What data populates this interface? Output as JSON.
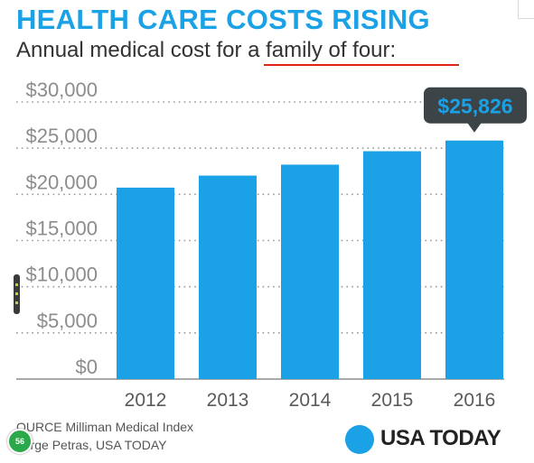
{
  "header": {
    "title": "HEALTH CARE COSTS RISING",
    "subtitle": "Annual medical cost for a family of four:"
  },
  "footer": {
    "source_line1": "OURCE Milliman Medical Index",
    "source_line2": "eorge Petras, USA TODAY",
    "brand": "USA TODAY"
  },
  "overlay": {
    "badge_text": "56"
  },
  "colors": {
    "bar": "#1ba1e6",
    "title": "#1ba1e6",
    "callout_bg": "#3d4447",
    "underline": "#e32119"
  },
  "chart_data": {
    "type": "bar",
    "title": "HEALTH CARE COSTS RISING",
    "subtitle": "Annual medical cost for a family of four:",
    "categories": [
      "2012",
      "2013",
      "2014",
      "2015",
      "2016"
    ],
    "values": [
      20728,
      22030,
      23215,
      24671,
      25826
    ],
    "ylim": [
      0,
      30000
    ],
    "yticks": [
      0,
      5000,
      10000,
      15000,
      20000,
      25000,
      30000
    ],
    "ytick_labels": [
      "$0",
      "$5,000",
      "$10,000",
      "$15,000",
      "$20,000",
      "$25,000",
      "$30,000"
    ],
    "grid": "dotted horizontal",
    "callout": {
      "category": "2016",
      "label": "$25,826"
    }
  }
}
